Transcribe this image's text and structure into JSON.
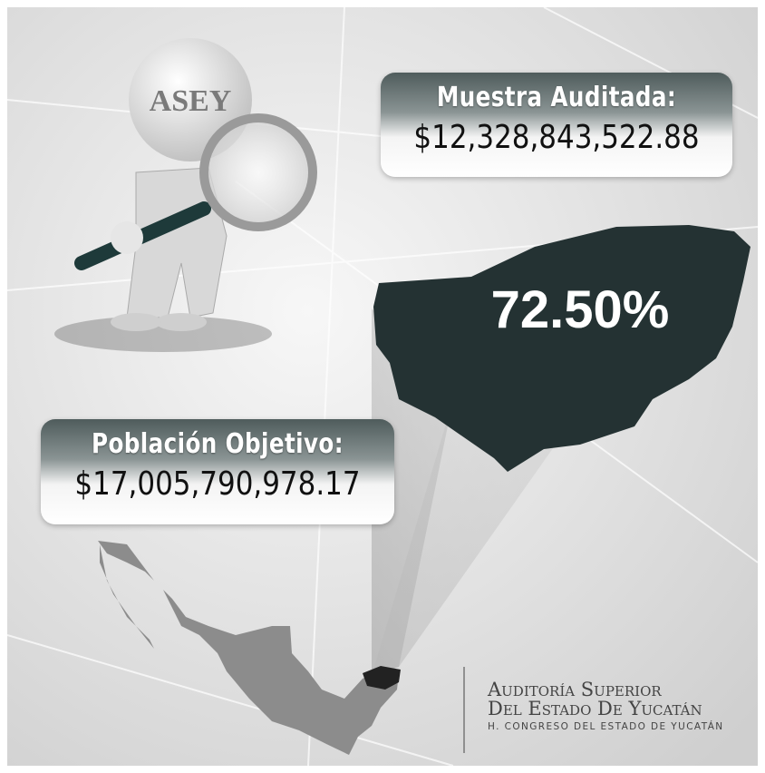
{
  "logo_text": "ASEY",
  "sample": {
    "label": "Muestra Auditada:",
    "amount": "$12,328,843,522.88"
  },
  "percentage": "72.50%",
  "population": {
    "label": "Población Objetivo:",
    "amount": "$17,005,790,978.17"
  },
  "institution": {
    "line1": "Auditoría Superior",
    "line2": "Del Estado De Yucatán",
    "line3": "H. CONGRESO DEL ESTADO DE YUCATÁN"
  }
}
